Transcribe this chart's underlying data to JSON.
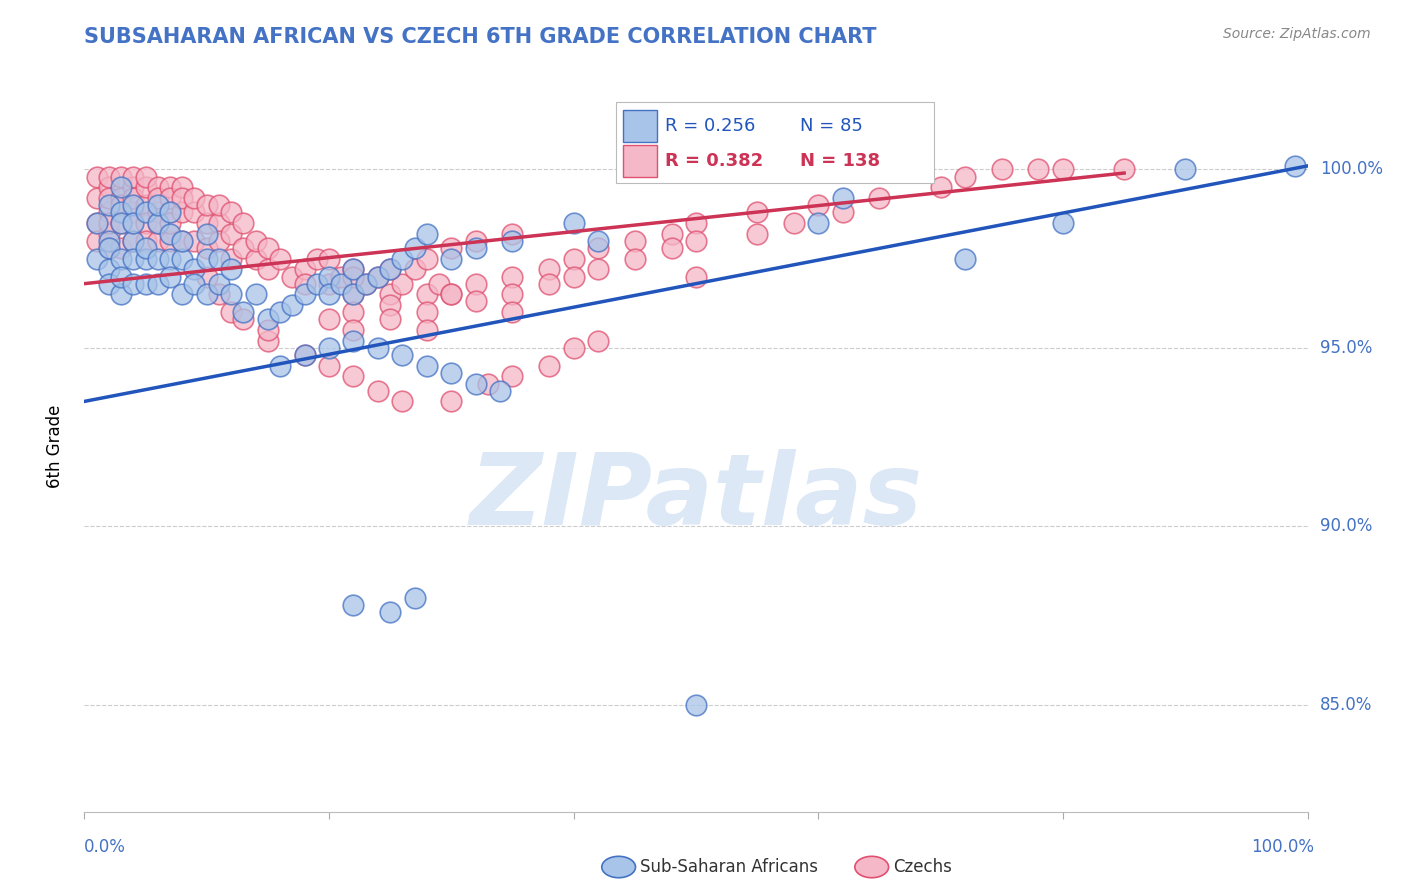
{
  "title": "SUBSAHARAN AFRICAN VS CZECH 6TH GRADE CORRELATION CHART",
  "source": "Source: ZipAtlas.com",
  "ylabel": "6th Grade",
  "legend_blue_label": "Sub-Saharan Africans",
  "legend_pink_label": "Czechs",
  "legend_blue_R": "0.256",
  "legend_blue_N": "85",
  "legend_pink_R": "0.382",
  "legend_pink_N": "138",
  "title_color": "#4472C4",
  "source_color": "#888888",
  "ylabel_color": "#000000",
  "right_tick_color": "#4472C4",
  "grid_color": "#cccccc",
  "watermark_text": "ZIPatlas",
  "watermark_color": "#dce8f5",
  "blue_scatter_face": "#a8c4e8",
  "blue_scatter_edge": "#4472C4",
  "pink_scatter_face": "#f4b8c8",
  "pink_scatter_edge": "#e05070",
  "blue_line_color": "#2255bb",
  "pink_line_color": "#cc3355",
  "legend_box_face": "#ffffff",
  "legend_box_edge": "#cccccc",
  "xlim": [
    0.0,
    1.0
  ],
  "ylim": [
    0.82,
    1.025
  ],
  "yticks": [
    0.85,
    0.9,
    0.95,
    1.0
  ],
  "ytick_labels_right": [
    "85.0%",
    "90.0%",
    "95.0%",
    "100.0%"
  ],
  "blue_line_x0": 0.0,
  "blue_line_y0": 0.935,
  "blue_line_x1": 1.0,
  "blue_line_y1": 1.001,
  "pink_line_x0": 0.0,
  "pink_line_y0": 0.968,
  "pink_line_x1": 0.85,
  "pink_line_y1": 0.999,
  "blue_pts_x": [
    0.01,
    0.01,
    0.02,
    0.02,
    0.02,
    0.02,
    0.02,
    0.03,
    0.03,
    0.03,
    0.03,
    0.03,
    0.03,
    0.04,
    0.04,
    0.04,
    0.04,
    0.04,
    0.05,
    0.05,
    0.05,
    0.05,
    0.06,
    0.06,
    0.06,
    0.06,
    0.07,
    0.07,
    0.07,
    0.07,
    0.08,
    0.08,
    0.08,
    0.09,
    0.09,
    0.1,
    0.1,
    0.1,
    0.11,
    0.11,
    0.12,
    0.12,
    0.13,
    0.14,
    0.15,
    0.16,
    0.17,
    0.18,
    0.19,
    0.2,
    0.2,
    0.21,
    0.22,
    0.22,
    0.23,
    0.24,
    0.25,
    0.26,
    0.27,
    0.28,
    0.3,
    0.32,
    0.35,
    0.4,
    0.42,
    0.6,
    0.62,
    0.72,
    0.8,
    0.9,
    0.22,
    0.24,
    0.26,
    0.28,
    0.3,
    0.32,
    0.34,
    0.2,
    0.18,
    0.16,
    0.22,
    0.25,
    0.27,
    0.5,
    0.99
  ],
  "blue_pts_y": [
    0.985,
    0.975,
    0.98,
    0.972,
    0.968,
    0.99,
    0.978,
    0.988,
    0.975,
    0.965,
    0.985,
    0.97,
    0.995,
    0.98,
    0.975,
    0.968,
    0.99,
    0.985,
    0.975,
    0.988,
    0.968,
    0.978,
    0.985,
    0.975,
    0.99,
    0.968,
    0.975,
    0.988,
    0.97,
    0.982,
    0.975,
    0.965,
    0.98,
    0.972,
    0.968,
    0.975,
    0.965,
    0.982,
    0.968,
    0.975,
    0.965,
    0.972,
    0.96,
    0.965,
    0.958,
    0.96,
    0.962,
    0.965,
    0.968,
    0.97,
    0.965,
    0.968,
    0.972,
    0.965,
    0.968,
    0.97,
    0.972,
    0.975,
    0.978,
    0.982,
    0.975,
    0.978,
    0.98,
    0.985,
    0.98,
    0.985,
    0.992,
    0.975,
    0.985,
    1.0,
    0.952,
    0.95,
    0.948,
    0.945,
    0.943,
    0.94,
    0.938,
    0.95,
    0.948,
    0.945,
    0.878,
    0.876,
    0.88,
    0.85,
    1.001
  ],
  "pink_pts_x": [
    0.01,
    0.01,
    0.01,
    0.01,
    0.02,
    0.02,
    0.02,
    0.02,
    0.02,
    0.02,
    0.02,
    0.03,
    0.03,
    0.03,
    0.03,
    0.03,
    0.04,
    0.04,
    0.04,
    0.04,
    0.04,
    0.04,
    0.05,
    0.05,
    0.05,
    0.05,
    0.05,
    0.06,
    0.06,
    0.06,
    0.06,
    0.06,
    0.07,
    0.07,
    0.07,
    0.07,
    0.07,
    0.08,
    0.08,
    0.08,
    0.08,
    0.09,
    0.09,
    0.09,
    0.1,
    0.1,
    0.1,
    0.11,
    0.11,
    0.11,
    0.12,
    0.12,
    0.12,
    0.13,
    0.13,
    0.14,
    0.14,
    0.15,
    0.15,
    0.16,
    0.17,
    0.18,
    0.19,
    0.2,
    0.2,
    0.21,
    0.22,
    0.22,
    0.23,
    0.24,
    0.25,
    0.26,
    0.27,
    0.28,
    0.29,
    0.3,
    0.32,
    0.35,
    0.38,
    0.4,
    0.42,
    0.45,
    0.48,
    0.5,
    0.55,
    0.6,
    0.65,
    0.7,
    0.72,
    0.75,
    0.78,
    0.8,
    0.85,
    0.1,
    0.11,
    0.12,
    0.13,
    0.15,
    0.18,
    0.2,
    0.22,
    0.24,
    0.26,
    0.3,
    0.33,
    0.35,
    0.38,
    0.4,
    0.42,
    0.15,
    0.2,
    0.22,
    0.25,
    0.3,
    0.18,
    0.22,
    0.25,
    0.28,
    0.3,
    0.32,
    0.35,
    0.22,
    0.25,
    0.28,
    0.32,
    0.35,
    0.38,
    0.4,
    0.42,
    0.45,
    0.48,
    0.5,
    0.55,
    0.58,
    0.62,
    0.28,
    0.35,
    0.5
  ],
  "pink_pts_y": [
    0.998,
    0.992,
    0.985,
    0.98,
    0.995,
    0.988,
    0.982,
    0.992,
    0.985,
    0.978,
    0.998,
    0.992,
    0.985,
    0.978,
    0.998,
    0.99,
    0.988,
    0.995,
    0.98,
    0.992,
    0.985,
    0.998,
    0.99,
    0.985,
    0.995,
    0.98,
    0.998,
    0.988,
    0.995,
    0.98,
    0.992,
    0.985,
    0.988,
    0.995,
    0.98,
    0.992,
    0.985,
    0.988,
    0.995,
    0.98,
    0.992,
    0.988,
    0.98,
    0.992,
    0.985,
    0.99,
    0.978,
    0.985,
    0.99,
    0.98,
    0.982,
    0.975,
    0.988,
    0.978,
    0.985,
    0.975,
    0.98,
    0.972,
    0.978,
    0.975,
    0.97,
    0.972,
    0.975,
    0.968,
    0.975,
    0.97,
    0.965,
    0.972,
    0.968,
    0.97,
    0.965,
    0.968,
    0.972,
    0.965,
    0.968,
    0.965,
    0.968,
    0.97,
    0.972,
    0.975,
    0.978,
    0.98,
    0.982,
    0.985,
    0.988,
    0.99,
    0.992,
    0.995,
    0.998,
    1.0,
    1.0,
    1.0,
    1.0,
    0.97,
    0.965,
    0.96,
    0.958,
    0.952,
    0.948,
    0.945,
    0.942,
    0.938,
    0.935,
    0.935,
    0.94,
    0.942,
    0.945,
    0.95,
    0.952,
    0.955,
    0.958,
    0.96,
    0.962,
    0.965,
    0.968,
    0.97,
    0.972,
    0.975,
    0.978,
    0.98,
    0.982,
    0.955,
    0.958,
    0.96,
    0.963,
    0.965,
    0.968,
    0.97,
    0.972,
    0.975,
    0.978,
    0.98,
    0.982,
    0.985,
    0.988,
    0.955,
    0.96,
    0.97
  ]
}
